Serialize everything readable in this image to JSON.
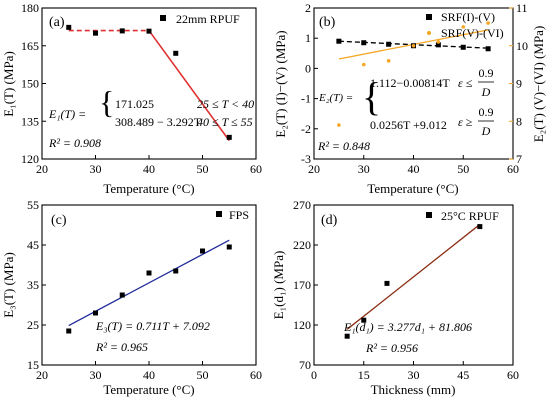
{
  "chart_data": [
    {
      "type": "line",
      "panel_label": "(a)",
      "ylabel": "E₁(T)  (MPa)",
      "xlabel": "Temperature  (°C)",
      "xlim": [
        20,
        60
      ],
      "ylim": [
        120,
        180
      ],
      "x_ticks": [
        20,
        30,
        40,
        50,
        60
      ],
      "y_ticks": [
        120,
        135,
        150,
        165,
        180
      ],
      "legend": "top-right",
      "series": [
        {
          "name": "22mm RPUF",
          "marker": "square",
          "color": "#000000",
          "points": [
            [
              25,
              172.3
            ],
            [
              30,
              170.0
            ],
            [
              35,
              170.9
            ],
            [
              40,
              170.8
            ],
            [
              45,
              162.0
            ],
            [
              55,
              128.6
            ]
          ]
        }
      ],
      "fits": [
        {
          "x": [
            25,
            40,
            55
          ],
          "y": [
            171.025,
            171.025,
            127.3
          ],
          "color": "#e03030",
          "style": "dashed-then-solid"
        }
      ],
      "annotations": {
        "eq_lhs": "E₁(T) =",
        "case1": "171.025",
        "case2": "308.489 − 3.292T",
        "cond1": "25 ≤ T < 40",
        "cond2": "40 ≤ T ≤ 55",
        "r2": "R² = 0.908"
      }
    },
    {
      "type": "scatter",
      "panel_label": "(b)",
      "ylabel": "E₂(T) (I)−(V)  (MPa)",
      "ylabel_right": "E₂(T) (V)−(VI)  (MPa)",
      "xlabel": "Temperature  (°C)",
      "xlim": [
        20,
        60
      ],
      "ylim": [
        -3,
        2
      ],
      "ylim_right": [
        7,
        11
      ],
      "x_ticks": [
        20,
        30,
        40,
        50,
        60
      ],
      "y_ticks": [
        -3,
        -2,
        -1,
        0,
        1,
        2
      ],
      "y_ticks_right": [
        7,
        8,
        9,
        10,
        11
      ],
      "legend": "top-right",
      "series": [
        {
          "name": "SRF(I)-(V)",
          "marker": "square",
          "color": "#000000",
          "axis": "left",
          "points": [
            [
              25,
              0.9
            ],
            [
              30,
              0.85
            ],
            [
              35,
              0.8
            ],
            [
              40,
              0.75
            ],
            [
              45,
              0.78
            ],
            [
              50,
              0.7
            ],
            [
              55,
              0.65
            ]
          ]
        },
        {
          "name": "SRF(V)-(VI)",
          "marker": "dot",
          "color": "#f5a623",
          "axis": "right",
          "points": [
            [
              25,
              7.9
            ],
            [
              30,
              9.5
            ],
            [
              35,
              9.6
            ],
            [
              40,
              10.0
            ],
            [
              45,
              10.1
            ],
            [
              50,
              10.5
            ],
            [
              55,
              10.6
            ]
          ]
        }
      ],
      "fits": [
        {
          "axis": "left",
          "x": [
            25,
            55
          ],
          "y": [
            0.9,
            0.67
          ],
          "color": "#000000",
          "style": "dashed"
        },
        {
          "axis": "right",
          "x": [
            25,
            55
          ],
          "y": [
            9.65,
            10.42
          ],
          "color": "#f5a623",
          "style": "solid"
        }
      ],
      "annotations": {
        "eq_lhs": "E₂(T) =",
        "case1": "1.112−0.00814T",
        "case2": "0.0256T +9.012",
        "cond1_lhs": "ε ≤",
        "cond2_lhs": "ε ≥",
        "frac_num": "0.9",
        "frac_den": "D",
        "r2": "R² = 0.848"
      }
    },
    {
      "type": "scatter",
      "panel_label": "(c)",
      "ylabel": "E₃(T)  (MPa)",
      "xlabel": "Temperature  (°C)",
      "xlim": [
        20,
        60
      ],
      "ylim": [
        15,
        55
      ],
      "x_ticks": [
        20,
        30,
        40,
        50,
        60
      ],
      "y_ticks": [
        15,
        25,
        35,
        45,
        55
      ],
      "legend": "top-right",
      "series": [
        {
          "name": "FPS",
          "marker": "square",
          "color": "#000000",
          "points": [
            [
              25,
              23.5
            ],
            [
              30,
              28.0
            ],
            [
              35,
              32.5
            ],
            [
              40,
              38.0
            ],
            [
              45,
              38.5
            ],
            [
              50,
              43.5
            ],
            [
              55,
              44.5
            ]
          ]
        }
      ],
      "fits": [
        {
          "x": [
            25,
            55
          ],
          "y": [
            24.87,
            46.2
          ],
          "color": "#1f2a9a",
          "style": "solid"
        }
      ],
      "annotations": {
        "eq": "E₃(T) = 0.711T + 7.092",
        "r2": "R² = 0.965"
      }
    },
    {
      "type": "scatter",
      "panel_label": "(d)",
      "ylabel": "E₁(d₁)  (MPa)",
      "xlabel": "Thickness  (mm)",
      "xlim": [
        0,
        60
      ],
      "ylim": [
        70,
        270
      ],
      "x_ticks": [
        0,
        15,
        30,
        45,
        60
      ],
      "y_ticks": [
        70,
        120,
        170,
        220,
        270
      ],
      "legend": "top-right",
      "series": [
        {
          "name": "25°C RPUF",
          "marker": "square",
          "color": "#000000",
          "points": [
            [
              10,
              106
            ],
            [
              15,
              126
            ],
            [
              22,
              172
            ],
            [
              50,
              243
            ]
          ]
        }
      ],
      "fits": [
        {
          "x": [
            10,
            50
          ],
          "y": [
            114.6,
            245.7
          ],
          "color": "#8b2e12",
          "style": "solid"
        }
      ],
      "annotations": {
        "eq": "E₁(d₁) = 3.277d₁ + 81.806",
        "r2": "R² = 0.956"
      }
    }
  ]
}
